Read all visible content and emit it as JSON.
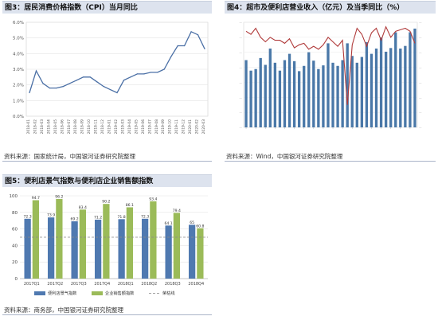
{
  "panels": {
    "cpi": {
      "title": "图3：居民消费价格指数（CPI）当月同比",
      "source": "资料来源：国家统计局，中国银河证券研究院整理"
    },
    "sales": {
      "title": "图4：超市及便利店营业收入（亿元）及当季同比（%）",
      "source": "资料来源：Wind，中国银河证券研究院整理"
    },
    "prosperity": {
      "title": "图5：便利店景气指数与便利店企业销售额指数",
      "source": "资料来源：商务部，中国银河证券研究院整理"
    }
  },
  "chart_data": [
    {
      "id": "cpi",
      "type": "line",
      "title": "",
      "xlabel": "",
      "ylabel": "",
      "ylim": [
        0,
        6
      ],
      "yticks": [
        "0.0%",
        "1.0%",
        "2.0%",
        "3.0%",
        "4.0%",
        "5.0%",
        "6.0%"
      ],
      "x": [
        "2018-01",
        "2018-02",
        "2018-03",
        "2018-04",
        "2018-05",
        "2018-06",
        "2018-07",
        "2018-08",
        "2018-09",
        "2018-10",
        "2018-11",
        "2018-12",
        "2019-01",
        "2019-02",
        "2019-03",
        "2019-04",
        "2019-05",
        "2019-06",
        "2019-07",
        "2019-08",
        "2019-09",
        "2019-10",
        "2019-11",
        "2019-12",
        "2020-01",
        "2020-02",
        "2020-03"
      ],
      "xticks": [
        "2018-01",
        "2018-02",
        "2018-03",
        "2018-04",
        "2018-05",
        "2018-06",
        "2018-07",
        "2018-08",
        "2018-09",
        "2018-10",
        "2018-11",
        "2018-12",
        "2019-01",
        "2019-02",
        "2019-03",
        "2019-04",
        "2019-05",
        "2019-06",
        "2019-07",
        "2019-08",
        "2019-09",
        "2019-10",
        "2019-11",
        "2019-12",
        "2020-01",
        "2020-02",
        "2020-03"
      ],
      "series": [
        {
          "name": "",
          "color": "#4a6fa5",
          "values": [
            1.5,
            2.9,
            2.1,
            1.8,
            1.8,
            1.9,
            2.1,
            2.3,
            2.5,
            2.5,
            2.2,
            1.9,
            1.7,
            1.5,
            2.3,
            2.5,
            2.7,
            2.7,
            2.8,
            2.8,
            3.0,
            3.8,
            4.5,
            4.5,
            5.4,
            5.2,
            4.3
          ]
        }
      ],
      "grid": true
    },
    {
      "id": "sales",
      "type": "bar",
      "title": "",
      "xlabel": "",
      "ylabel": "",
      "ylim_left": [
        0,
        1000
      ],
      "ylim_right": [
        -50,
        20
      ],
      "bar_color": "#4a78a8",
      "line_color": "#b03a3a",
      "series": [
        {
          "name": "",
          "axis": "left",
          "values": [
            640,
            540,
            555,
            660,
            595,
            750,
            615,
            540,
            640,
            700,
            630,
            535,
            585,
            715,
            635,
            555,
            590,
            800,
            615,
            585,
            640,
            800,
            680,
            615,
            670,
            810,
            700,
            750,
            855,
            720,
            755,
            905,
            750,
            775,
            905,
            940
          ]
        },
        {
          "name": "",
          "axis": "right",
          "values": [
            14,
            12,
            16,
            10,
            7,
            10,
            8,
            8,
            6,
            9,
            3,
            5,
            6,
            2,
            4,
            2,
            5,
            10,
            7,
            4,
            8,
            -35,
            5,
            16,
            12,
            4,
            13,
            16,
            8,
            17,
            10,
            14,
            15,
            16,
            14,
            6
          ]
        }
      ],
      "grid": true
    },
    {
      "id": "prosperity",
      "type": "bar",
      "title": "",
      "xlabel": "",
      "ylabel": "",
      "ylim": [
        0,
        100
      ],
      "yticks": [
        0,
        20,
        40,
        60,
        80,
        100
      ],
      "categories": [
        "2017Q1",
        "2017Q2",
        "2017Q3",
        "2017Q4",
        "2018Q1",
        "2018Q2",
        "2018Q3",
        "2018Q4"
      ],
      "reference_line": 50,
      "series": [
        {
          "name": "便利店景气指数",
          "color": "#4f79b0",
          "values": [
            72.3,
            73.9,
            69.2,
            71.2,
            71.8,
            72.3,
            64.1,
            65
          ]
        },
        {
          "name": "企业销售额指数",
          "color": "#9bbb59",
          "values": [
            94.7,
            96.2,
            83.4,
            90.2,
            86.1,
            93.4,
            79.4,
            60.8
          ]
        },
        {
          "name": "荣枯线",
          "color": "#8a8a8a"
        }
      ],
      "legend_position": "bottom"
    }
  ]
}
